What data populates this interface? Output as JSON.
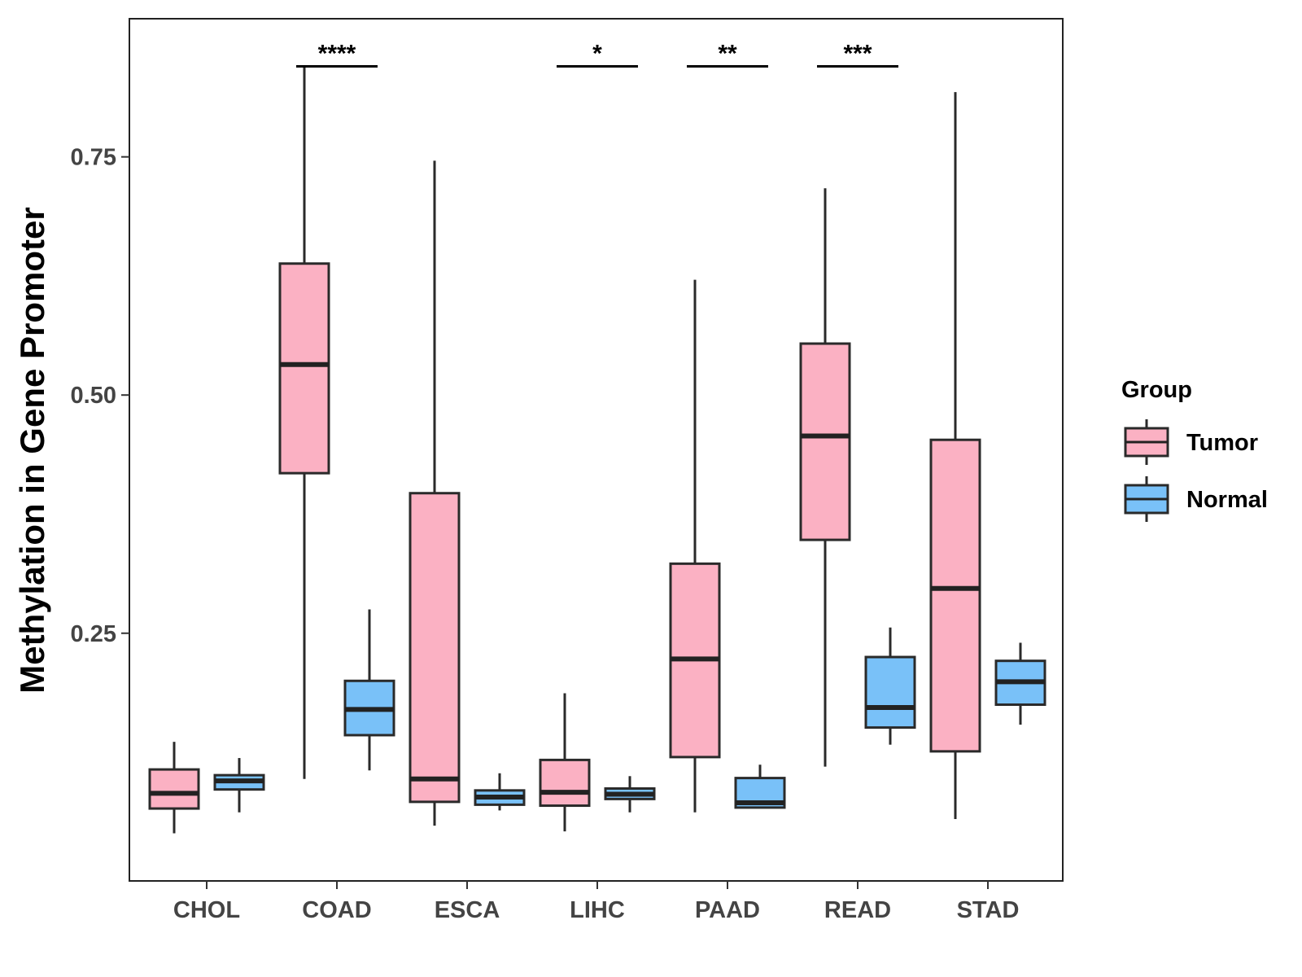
{
  "chart_data": {
    "type": "boxplot",
    "title": "",
    "xlabel": "",
    "ylabel": "Methylation in Gene Promoter",
    "ylim": [
      -0.01,
      0.895
    ],
    "yticks": [
      0.25,
      0.5,
      0.75
    ],
    "ytick_labels": [
      "0.25",
      "0.50",
      "0.75"
    ],
    "categories": [
      "CHOL",
      "COAD",
      "ESCA",
      "LIHC",
      "PAAD",
      "READ",
      "STAD"
    ],
    "legend": {
      "title": "Group",
      "placement": "right",
      "entries": [
        {
          "name": "Tumor",
          "color": "#FBB1C3"
        },
        {
          "name": "Normal",
          "color": "#79C1F8"
        }
      ]
    },
    "series": [
      {
        "name": "Tumor",
        "color": "#FBB1C3",
        "boxes": [
          {
            "min": 0.04,
            "q1": 0.066,
            "median": 0.082,
            "q3": 0.107,
            "max": 0.136
          },
          {
            "min": 0.097,
            "q1": 0.418,
            "median": 0.532,
            "q3": 0.638,
            "max": 0.845
          },
          {
            "min": 0.048,
            "q1": 0.073,
            "median": 0.097,
            "q3": 0.397,
            "max": 0.746
          },
          {
            "min": 0.042,
            "q1": 0.069,
            "median": 0.083,
            "q3": 0.117,
            "max": 0.187
          },
          {
            "min": 0.062,
            "q1": 0.12,
            "median": 0.223,
            "q3": 0.323,
            "max": 0.621
          },
          {
            "min": 0.11,
            "q1": 0.348,
            "median": 0.457,
            "q3": 0.554,
            "max": 0.717
          },
          {
            "min": 0.055,
            "q1": 0.126,
            "median": 0.297,
            "q3": 0.453,
            "max": 0.818
          }
        ]
      },
      {
        "name": "Normal",
        "color": "#79C1F8",
        "boxes": [
          {
            "min": 0.062,
            "q1": 0.086,
            "median": 0.095,
            "q3": 0.101,
            "max": 0.119
          },
          {
            "min": 0.106,
            "q1": 0.143,
            "median": 0.17,
            "q3": 0.2,
            "max": 0.275
          },
          {
            "min": 0.064,
            "q1": 0.07,
            "median": 0.078,
            "q3": 0.085,
            "max": 0.103
          },
          {
            "min": 0.062,
            "q1": 0.076,
            "median": 0.081,
            "q3": 0.087,
            "max": 0.1
          },
          {
            "min": 0.067,
            "q1": 0.067,
            "median": 0.072,
            "q3": 0.098,
            "max": 0.112
          },
          {
            "min": 0.133,
            "q1": 0.151,
            "median": 0.172,
            "q3": 0.225,
            "max": 0.256
          },
          {
            "min": 0.154,
            "q1": 0.175,
            "median": 0.199,
            "q3": 0.221,
            "max": 0.24
          }
        ]
      }
    ],
    "significance": [
      {
        "category": "COAD",
        "label": "****",
        "y": 0.845
      },
      {
        "category": "LIHC",
        "label": "*",
        "y": 0.845
      },
      {
        "category": "PAAD",
        "label": "**",
        "y": 0.845
      },
      {
        "category": "READ",
        "label": "***",
        "y": 0.845
      }
    ]
  }
}
